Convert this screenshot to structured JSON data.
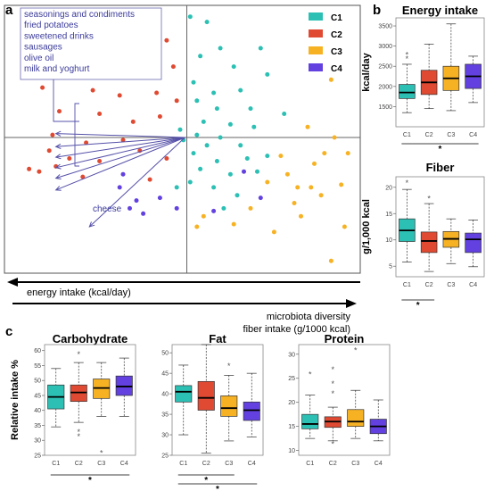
{
  "colors": {
    "C1": "#2cc0b4",
    "C2": "#e04a32",
    "C3": "#f7b224",
    "C4": "#6241e0",
    "arrow": "#5550a8"
  },
  "panels": {
    "a": "a",
    "b": "b",
    "c": "c"
  },
  "chart_data": [
    {
      "type": "scatter",
      "panel": "a",
      "legend": [
        "C1",
        "C2",
        "C3",
        "C4"
      ],
      "legend_position": "top-right",
      "food_labels": [
        "seasonings and condiments",
        "fried potatoes",
        "sweetened drinks",
        "sausages",
        "olive oil",
        "milk and yoghurt"
      ],
      "cheese_label": "cheese",
      "axis_left": "energy intake (kcal/day)",
      "axis_right_1": "microbiota diversity",
      "axis_right_2": "fiber intake (g/1000 kcal)",
      "xlim": [
        -5,
        5
      ],
      "ylim": [
        -5,
        5
      ],
      "series": [
        {
          "name": "C1",
          "points": [
            [
              0.1,
              4.6
            ],
            [
              0.6,
              4.4
            ],
            [
              1.0,
              3.4
            ],
            [
              0.4,
              3.1
            ],
            [
              1.4,
              2.7
            ],
            [
              2.2,
              3.4
            ],
            [
              0.2,
              2.1
            ],
            [
              0.8,
              1.7
            ],
            [
              1.6,
              1.8
            ],
            [
              2.4,
              2.4
            ],
            [
              0.3,
              1.4
            ],
            [
              0.9,
              1.1
            ],
            [
              1.9,
              1.1
            ],
            [
              0.5,
              0.6
            ],
            [
              1.3,
              0.5
            ],
            [
              2.0,
              0.4
            ],
            [
              0.3,
              0.1
            ],
            [
              1.0,
              0.0
            ],
            [
              0.6,
              -0.3
            ],
            [
              1.6,
              -0.3
            ],
            [
              0.2,
              -0.6
            ],
            [
              0.9,
              -0.9
            ],
            [
              1.8,
              -0.8
            ],
            [
              0.4,
              -1.2
            ],
            [
              1.3,
              -1.4
            ],
            [
              2.4,
              -0.7
            ],
            [
              0.1,
              -1.7
            ],
            [
              0.8,
              -1.9
            ],
            [
              2.1,
              -1.3
            ],
            [
              1.5,
              -2.2
            ],
            [
              -0.3,
              -1.9
            ],
            [
              -0.1,
              -0.1
            ],
            [
              -0.2,
              0.3
            ],
            [
              1.1,
              -2.7
            ],
            [
              2.9,
              0.9
            ]
          ]
        },
        {
          "name": "C2",
          "points": [
            [
              -4.2,
              4.1
            ],
            [
              -3.6,
              3.6
            ],
            [
              -2.3,
              3.9
            ],
            [
              -1.2,
              4.3
            ],
            [
              -0.6,
              3.7
            ],
            [
              -4.0,
              2.6
            ],
            [
              -3.2,
              2.9
            ],
            [
              -1.7,
              2.6
            ],
            [
              -1.0,
              3.0
            ],
            [
              -0.4,
              2.7
            ],
            [
              -4.3,
              1.9
            ],
            [
              -2.8,
              1.8
            ],
            [
              -2.0,
              1.6
            ],
            [
              -0.9,
              1.7
            ],
            [
              -0.3,
              1.4
            ],
            [
              -3.8,
              1.0
            ],
            [
              -2.6,
              0.9
            ],
            [
              -1.6,
              0.6
            ],
            [
              -0.8,
              0.8
            ],
            [
              -4.0,
              0.1
            ],
            [
              -3.0,
              -0.2
            ],
            [
              -1.9,
              -0.1
            ],
            [
              -4.1,
              -0.5
            ],
            [
              -3.5,
              -0.8
            ],
            [
              -2.6,
              -0.9
            ],
            [
              -1.4,
              -0.5
            ],
            [
              -4.7,
              -1.2
            ],
            [
              -4.4,
              -1.3
            ],
            [
              -3.9,
              -1.1
            ],
            [
              -3.1,
              -1.5
            ],
            [
              -1.1,
              -1.6
            ],
            [
              -0.6,
              -0.8
            ],
            [
              -2.3,
              2.4
            ]
          ]
        },
        {
          "name": "C3",
          "points": [
            [
              4.3,
              2.2
            ],
            [
              3.6,
              0.4
            ],
            [
              4.4,
              0.0
            ],
            [
              4.8,
              -0.6
            ],
            [
              3.8,
              -1.0
            ],
            [
              3.0,
              -1.4
            ],
            [
              4.0,
              -2.2
            ],
            [
              3.2,
              -2.5
            ],
            [
              4.6,
              -1.8
            ],
            [
              2.4,
              -1.7
            ],
            [
              3.4,
              -3.0
            ],
            [
              4.7,
              -3.4
            ],
            [
              4.3,
              -4.7
            ],
            [
              0.5,
              -3.0
            ],
            [
              0.3,
              -3.4
            ],
            [
              1.9,
              -2.7
            ],
            [
              2.8,
              -0.7
            ],
            [
              3.7,
              -1.9
            ],
            [
              1.4,
              -3.3
            ],
            [
              2.6,
              -3.6
            ],
            [
              4.1,
              -0.6
            ],
            [
              3.3,
              -1.9
            ]
          ]
        },
        {
          "name": "C4",
          "points": [
            [
              -1.9,
              -1.4
            ],
            [
              -2.0,
              -1.9
            ],
            [
              -1.5,
              -2.4
            ],
            [
              -1.7,
              -2.7
            ],
            [
              -0.8,
              -2.3
            ],
            [
              -0.3,
              -2.7
            ],
            [
              0.8,
              -2.8
            ],
            [
              1.7,
              -1.3
            ],
            [
              2.2,
              -2.3
            ],
            [
              -1.3,
              -2.9
            ]
          ]
        }
      ],
      "arrows": [
        {
          "label": "seasonings and condiments",
          "x": -3.9,
          "y": 0.15
        },
        {
          "label": "fried potatoes",
          "x": -3.9,
          "y": -0.35
        },
        {
          "label": "sweetened drinks",
          "x": -3.9,
          "y": -0.75
        },
        {
          "label": "sausages",
          "x": -3.9,
          "y": -1.15
        },
        {
          "label": "olive oil",
          "x": -3.9,
          "y": -1.55
        },
        {
          "label": "milk and yoghurt",
          "x": -3.9,
          "y": -2.0
        },
        {
          "label": "cheese",
          "x": -2.9,
          "y": -3.4
        }
      ]
    },
    {
      "type": "box",
      "panel": "b",
      "title": "Energy intake",
      "ylabel": "kcal/day",
      "categories": [
        "C1",
        "C2",
        "C3",
        "C4"
      ],
      "ylim": [
        1000,
        3700
      ],
      "yticks": [
        1500,
        2000,
        2500,
        3000,
        3500
      ],
      "boxes": [
        {
          "name": "C1",
          "whislo": 1350,
          "q1": 1700,
          "med": 1850,
          "q3": 2050,
          "whishi": 2550,
          "fliers": [
            2700,
            2800
          ]
        },
        {
          "name": "C2",
          "whislo": 1450,
          "q1": 1800,
          "med": 2100,
          "q3": 2400,
          "whishi": 3050,
          "fliers": []
        },
        {
          "name": "C3",
          "whislo": 1400,
          "q1": 1900,
          "med": 2200,
          "q3": 2500,
          "whishi": 3550,
          "fliers": []
        },
        {
          "name": "C4",
          "whislo": 1600,
          "q1": 1950,
          "med": 2250,
          "q3": 2550,
          "whishi": 2750,
          "fliers": []
        }
      ],
      "significance": [
        {
          "from": "C1",
          "to": "C4",
          "label": "*"
        }
      ]
    },
    {
      "type": "box",
      "panel": "b",
      "title": "Fiber",
      "ylabel": "g/1,000 kcal",
      "categories": [
        "C1",
        "C2",
        "C3",
        "C4"
      ],
      "ylim": [
        3,
        22
      ],
      "yticks": [
        5,
        10,
        15,
        20
      ],
      "boxes": [
        {
          "name": "C1",
          "whislo": 5.8,
          "q1": 9.7,
          "med": 11.8,
          "q3": 14.0,
          "whishi": 19.6,
          "fliers": [
            21.0
          ]
        },
        {
          "name": "C2",
          "whislo": 4.0,
          "q1": 7.6,
          "med": 9.8,
          "q3": 11.5,
          "whishi": 16.9,
          "fliers": [
            18.0
          ]
        },
        {
          "name": "C3",
          "whislo": 5.5,
          "q1": 8.6,
          "med": 10.2,
          "q3": 11.6,
          "whishi": 14.0,
          "fliers": []
        },
        {
          "name": "C4",
          "whislo": 4.9,
          "q1": 7.6,
          "med": 10.1,
          "q3": 11.3,
          "whishi": 13.8,
          "fliers": []
        }
      ],
      "significance": [
        {
          "from": "C1",
          "to": "C2",
          "label": "*"
        }
      ]
    },
    {
      "type": "box",
      "panel": "c",
      "title": "Carbohydrate",
      "ylabel": "Relative intake %",
      "categories": [
        "C1",
        "C2",
        "C3",
        "C4"
      ],
      "ylim": [
        25,
        62
      ],
      "yticks": [
        25,
        30,
        35,
        40,
        45,
        50,
        55,
        60
      ],
      "boxes": [
        {
          "name": "C1",
          "whislo": 34.5,
          "q1": 40.5,
          "med": 44.5,
          "q3": 48.5,
          "whishi": 54.0,
          "fliers": []
        },
        {
          "name": "C2",
          "whislo": 36.0,
          "q1": 43.0,
          "med": 46.0,
          "q3": 48.5,
          "whishi": 56.0,
          "fliers": [
            31.5,
            33.0,
            59.0
          ]
        },
        {
          "name": "C3",
          "whislo": 38.0,
          "q1": 44.0,
          "med": 47.5,
          "q3": 50.5,
          "whishi": 56.0,
          "fliers": [
            26.0
          ]
        },
        {
          "name": "C4",
          "whislo": 38.0,
          "q1": 45.0,
          "med": 48.0,
          "q3": 51.5,
          "whishi": 57.5,
          "fliers": []
        }
      ],
      "significance": [
        {
          "from": "C1",
          "to": "C4",
          "label": "*"
        }
      ]
    },
    {
      "type": "box",
      "panel": "c",
      "title": "Fat",
      "ylabel": "",
      "categories": [
        "C1",
        "C2",
        "C3",
        "C4"
      ],
      "ylim": [
        25,
        52
      ],
      "yticks": [
        25,
        30,
        35,
        40,
        45,
        50
      ],
      "boxes": [
        {
          "name": "C1",
          "whislo": 30.0,
          "q1": 38.0,
          "med": 40.5,
          "q3": 42.0,
          "whishi": 47.0,
          "fliers": []
        },
        {
          "name": "C2",
          "whislo": 25.5,
          "q1": 36.0,
          "med": 39.0,
          "q3": 43.0,
          "whishi": 52.0,
          "fliers": []
        },
        {
          "name": "C3",
          "whislo": 28.5,
          "q1": 34.5,
          "med": 36.5,
          "q3": 39.5,
          "whishi": 44.5,
          "fliers": [
            47.0
          ]
        },
        {
          "name": "C4",
          "whislo": 29.5,
          "q1": 33.5,
          "med": 36.0,
          "q3": 38.0,
          "whishi": 45.0,
          "fliers": []
        }
      ],
      "significance": [
        {
          "from": "C1",
          "to": "C3",
          "label": "*"
        },
        {
          "from": "C1",
          "to": "C4",
          "label": "*"
        }
      ]
    },
    {
      "type": "box",
      "panel": "c",
      "title": "Protein",
      "ylabel": "",
      "categories": [
        "C1",
        "C2",
        "C3",
        "C4"
      ],
      "ylim": [
        9,
        32
      ],
      "yticks": [
        10,
        15,
        20,
        25,
        30
      ],
      "boxes": [
        {
          "name": "C1",
          "whislo": 12.5,
          "q1": 14.5,
          "med": 15.5,
          "q3": 17.5,
          "whishi": 21.5,
          "fliers": [
            26.0
          ]
        },
        {
          "name": "C2",
          "whislo": 12.0,
          "q1": 14.8,
          "med": 16.0,
          "q3": 17.0,
          "whishi": 19.0,
          "fliers": [
            22.0,
            24.0,
            27.0,
            11.5
          ]
        },
        {
          "name": "C3",
          "whislo": 12.5,
          "q1": 15.0,
          "med": 16.0,
          "q3": 18.5,
          "whishi": 22.5,
          "fliers": [
            31.0
          ]
        },
        {
          "name": "C4",
          "whislo": 12.0,
          "q1": 13.5,
          "med": 15.0,
          "q3": 16.5,
          "whishi": 20.5,
          "fliers": []
        }
      ],
      "significance": []
    }
  ]
}
